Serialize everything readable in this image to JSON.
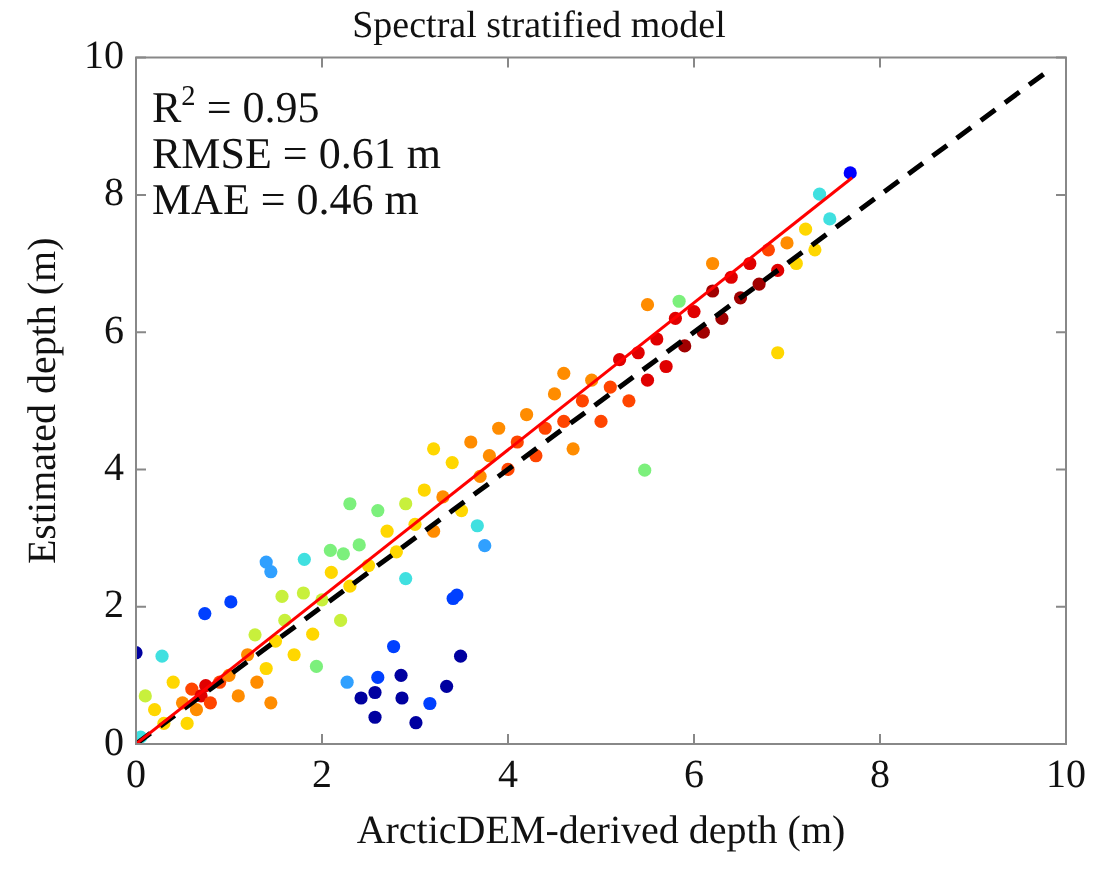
{
  "chart_data": {
    "type": "scatter",
    "title": "Spectral stratified model",
    "xlabel": "ArcticDEM-derived depth (m)",
    "ylabel": "Estimated depth (m)",
    "annotations": [
      "R$^{2}$ = 0.95",
      "RMSE = 0.61 m",
      "MAE = 0.46 m"
    ],
    "xlim": [
      0,
      10
    ],
    "ylim": [
      0,
      10
    ],
    "xticks": [
      0,
      2,
      4,
      6,
      8,
      10
    ],
    "yticks": [
      0,
      2,
      4,
      6,
      8,
      10
    ],
    "grid": false,
    "legend": false,
    "marker": "circle",
    "series": [
      {
        "x": [
          0,
          0.74,
          1.02,
          0.28,
          1.4,
          1.45,
          1.81,
          2.27,
          2.42,
          2.57,
          2.6,
          2.57,
          2.77,
          2.85,
          2.86,
          3.01,
          3.16,
          3.34,
          3.41,
          3.45,
          3.49,
          2.9,
          3.67,
          3.75,
          1.94,
          1.28,
          1.57,
          2.09,
          2.23,
          7.68,
          7.35,
          7.46,
          5.84,
          5.47,
          6.9,
          0.05,
          0.1,
          0.2,
          0.3,
          0.4,
          0.5,
          0.6,
          0.7,
          0.75,
          0.8,
          0.9,
          0.65,
          0.55,
          1.0,
          1.1,
          1.2,
          1.3,
          1.4,
          1.5,
          1.45,
          1.7,
          1.6,
          1.8,
          1.9,
          2.0,
          2.1,
          2.2,
          2.3,
          2.4,
          2.5,
          2.6,
          2.7,
          2.8,
          2.9,
          3.0,
          3.1,
          3.2,
          3.3,
          3.4,
          3.5,
          3.6,
          3.7,
          3.8,
          3.9,
          4.0,
          4.1,
          4.2,
          4.3,
          4.4,
          4.5,
          4.6,
          4.7,
          4.8,
          4.9,
          5.0,
          5.1,
          5.2,
          5.3,
          5.4,
          5.5,
          5.6,
          5.7,
          5.8,
          5.9,
          6.0,
          6.1,
          6.2,
          6.3,
          6.4,
          6.5,
          6.6,
          6.7,
          6.8,
          6.9,
          7.0,
          7.1,
          7.2,
          7.3,
          6.2,
          5.5,
          4.6,
          3.2,
          2.3
        ],
        "values": [
          1.33,
          1.9,
          2.07,
          1.28,
          2.65,
          2.51,
          2.69,
          0.9,
          0.67,
          0.75,
          0.97,
          0.39,
          1.42,
          1.0,
          0.67,
          0.31,
          0.59,
          0.84,
          2.12,
          2.17,
          1.28,
          2.41,
          3.18,
          2.89,
          1.13,
          1.59,
          2.15,
          2.82,
          2.77,
          8.32,
          8.01,
          7.65,
          6.45,
          3.99,
          5.7,
          0.1,
          0.7,
          0.5,
          0.3,
          0.9,
          0.6,
          0.8,
          0.7,
          0.85,
          0.6,
          0.9,
          0.5,
          0.3,
          1.0,
          0.7,
          1.3,
          0.9,
          1.1,
          1.5,
          0.6,
          1.3,
          1.8,
          2.2,
          1.6,
          2.1,
          2.5,
          1.8,
          2.3,
          2.9,
          2.6,
          3.4,
          3.1,
          2.8,
          3.5,
          3.2,
          3.7,
          3.1,
          3.6,
          4.1,
          3.4,
          4.4,
          3.9,
          4.2,
          4.6,
          4.0,
          4.4,
          4.8,
          4.2,
          4.6,
          5.1,
          4.7,
          4.3,
          5.0,
          5.3,
          4.7,
          5.2,
          5.6,
          5.0,
          5.7,
          5.3,
          5.9,
          5.5,
          6.2,
          5.8,
          6.3,
          6.0,
          6.6,
          6.2,
          6.8,
          6.5,
          7.0,
          6.7,
          7.2,
          6.9,
          7.3,
          7.0,
          7.5,
          7.2,
          7.0,
          6.4,
          5.4,
          4.3,
          3.5
        ],
        "colors": [
          "#0000a0",
          "#0040ff",
          "#0040ff",
          "#40e0e0",
          "#30a0ff",
          "#30a0ff",
          "#40e0e0",
          "#30a0ff",
          "#0000a0",
          "#0000a0",
          "#0040ff",
          "#0000a0",
          "#0040ff",
          "#0000a0",
          "#0000a0",
          "#0000a0",
          "#0040ff",
          "#0000a0",
          "#0040ff",
          "#0040ff",
          "#0000a0",
          "#40e0e0",
          "#40e0e0",
          "#30a0ff",
          "#7cf07c",
          "#c8f03c",
          "#c8f03c",
          "#7cf07c",
          "#7cf07c",
          "#0000ff",
          "#40e0e0",
          "#40e0e0",
          "#7cf07c",
          "#7cf07c",
          "#ffd700",
          "#40e0e0",
          "#c8f03c",
          "#ffd700",
          "#ffd700",
          "#ffd700",
          "#ff8c00",
          "#ff4500",
          "#e00000",
          "#e00000",
          "#ff4500",
          "#ff4500",
          "#ff8c00",
          "#ffd700",
          "#ff8c00",
          "#ff8c00",
          "#ff8c00",
          "#ff8c00",
          "#ffd700",
          "#ffd700",
          "#ff8c00",
          "#ffd700",
          "#c8f03c",
          "#c8f03c",
          "#ffd700",
          "#c8f03c",
          "#ffd700",
          "#c8f03c",
          "#ffd700",
          "#7cf07c",
          "#ffd700",
          "#7cf07c",
          "#ffd700",
          "#ffd700",
          "#c8f03c",
          "#ffd700",
          "#ffd700",
          "#ff8c00",
          "#ff8c00",
          "#ffd700",
          "#ffd700",
          "#ff8c00",
          "#ff8c00",
          "#ff8c00",
          "#ff8c00",
          "#ff4500",
          "#ff4500",
          "#ff8c00",
          "#ff4500",
          "#ff4500",
          "#ff8c00",
          "#ff4500",
          "#ff8c00",
          "#ff4500",
          "#ff8c00",
          "#ff4500",
          "#ff4500",
          "#e00000",
          "#ff4500",
          "#e00000",
          "#e00000",
          "#e00000",
          "#e00000",
          "#e00000",
          "#a00000",
          "#e00000",
          "#a00000",
          "#a00000",
          "#a00000",
          "#e00000",
          "#a00000",
          "#e00000",
          "#a00000",
          "#ff4500",
          "#e00000",
          "#ff8c00",
          "#ffd700",
          "#ffd700",
          "#ffd700",
          "#ff8c00",
          "#ff8c00",
          "#ff8c00",
          "#ffd700",
          "#7cf07c"
        ]
      },
      {
        "type": "line",
        "x": [
          0,
          7.7
        ],
        "values": [
          0,
          8.25
        ],
        "color": "#ff0000",
        "marker": "none"
      },
      {
        "type": "line",
        "x": [
          0,
          9.8
        ],
        "values": [
          0,
          9.8
        ],
        "color": "#000000",
        "line_style": "dashed",
        "marker": "none"
      }
    ]
  }
}
